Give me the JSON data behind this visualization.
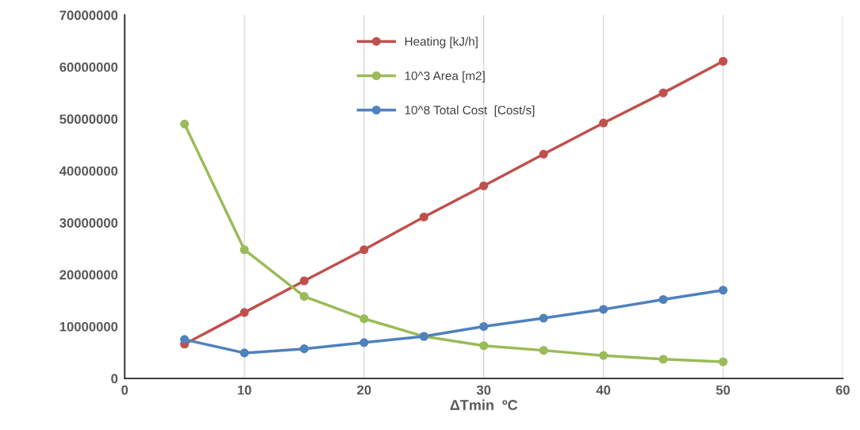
{
  "chart_data": {
    "type": "line",
    "xlabel": "ΔTmin  ºC",
    "x": [
      5,
      10,
      15,
      20,
      25,
      30,
      35,
      40,
      45,
      50
    ],
    "series": [
      {
        "name": "Heating [kJ/h]",
        "color": "#c0504d",
        "values": [
          6600000,
          12700000,
          18800000,
          24800000,
          31100000,
          37100000,
          43200000,
          49200000,
          55000000,
          61100000
        ]
      },
      {
        "name": "10^3 Area [m2]",
        "color": "#9bbb59",
        "values": [
          49000000,
          24800000,
          15800000,
          11500000,
          8100000,
          6300000,
          5400000,
          4400000,
          3700000,
          3200000
        ]
      },
      {
        "name": "10^8 Total Cost  [Cost/s]",
        "color": "#4f81bd",
        "values": [
          7500000,
          4900000,
          5700000,
          6900000,
          8100000,
          10000000,
          11600000,
          13300000,
          15200000,
          17000000
        ]
      }
    ],
    "xlim": [
      0,
      60
    ],
    "xticks": [
      0,
      10,
      20,
      30,
      40,
      50,
      60
    ],
    "ylim": [
      0,
      70000000
    ],
    "yticks": [
      0,
      10000000,
      20000000,
      30000000,
      40000000,
      50000000,
      60000000,
      70000000
    ],
    "grid": "x",
    "legend": "top",
    "marker": "circle",
    "line_style": "solid"
  }
}
